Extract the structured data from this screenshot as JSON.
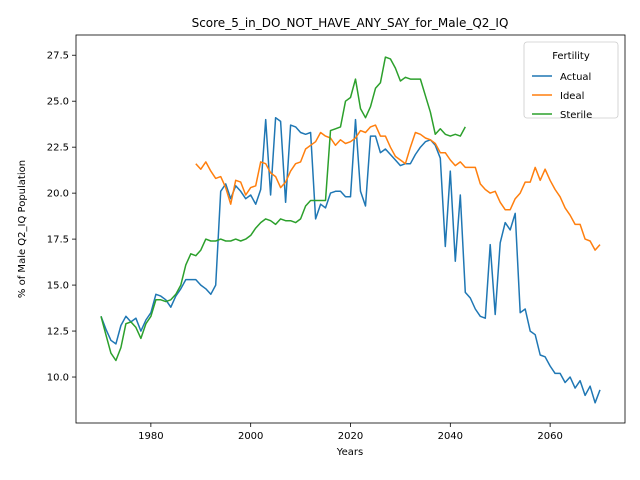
{
  "chart_data": {
    "type": "line",
    "title": "Score_5_in_DO_NOT_HAVE_ANY_SAY_for_Male_Q2_IQ",
    "xlabel": "Years",
    "ylabel": "% of Male Q2_IQ Population",
    "xlim": [
      1965,
      2075
    ],
    "ylim": [
      7.5,
      28.6
    ],
    "xticks": [
      1980,
      2000,
      2020,
      2040,
      2060
    ],
    "yticks": [
      10.0,
      12.5,
      15.0,
      17.5,
      20.0,
      22.5,
      25.0,
      27.5
    ],
    "xtick_labels": [
      "1980",
      "2000",
      "2020",
      "2040",
      "2060"
    ],
    "ytick_labels": [
      "10.0",
      "12.5",
      "15.0",
      "17.5",
      "20.0",
      "22.5",
      "25.0",
      "27.5"
    ],
    "grid": false,
    "legend": {
      "title": "Fertility",
      "position": "top-right"
    },
    "series": [
      {
        "name": "Actual",
        "color": "#1f77b4",
        "x": [
          1970,
          1971,
          1972,
          1973,
          1974,
          1975,
          1976,
          1977,
          1978,
          1979,
          1980,
          1981,
          1982,
          1983,
          1984,
          1985,
          1986,
          1987,
          1988,
          1989,
          1990,
          1991,
          1992,
          1993,
          1994,
          1995,
          1996,
          1997,
          1998,
          1999,
          2000,
          2001,
          2002,
          2003,
          2004,
          2005,
          2006,
          2007,
          2008,
          2009,
          2010,
          2011,
          2012,
          2013,
          2014,
          2015,
          2016,
          2017,
          2018,
          2019,
          2020,
          2021,
          2022,
          2023,
          2024,
          2025,
          2026,
          2027,
          2028,
          2029,
          2030,
          2031,
          2032,
          2033,
          2034,
          2035,
          2036,
          2037,
          2038,
          2039,
          2040,
          2041,
          2042,
          2043,
          2044,
          2045,
          2046,
          2047,
          2048,
          2049,
          2050,
          2051,
          2052,
          2053,
          2054,
          2055,
          2056,
          2057,
          2058,
          2059,
          2060,
          2061,
          2062,
          2063,
          2064,
          2065,
          2066,
          2067,
          2068,
          2069,
          2070
        ],
        "y": [
          13.3,
          12.6,
          12.0,
          11.8,
          12.8,
          13.3,
          13.0,
          13.2,
          12.5,
          13.1,
          13.5,
          14.5,
          14.4,
          14.2,
          13.8,
          14.4,
          14.8,
          15.3,
          15.3,
          15.3,
          15.0,
          14.8,
          14.5,
          15.0,
          20.1,
          20.5,
          19.7,
          20.4,
          20.1,
          19.7,
          19.9,
          19.4,
          20.2,
          24.0,
          19.9,
          24.1,
          23.9,
          19.5,
          23.7,
          23.6,
          23.3,
          23.2,
          23.3,
          18.6,
          19.4,
          19.2,
          20.0,
          20.1,
          20.1,
          19.8,
          19.8,
          24.0,
          20.1,
          19.3,
          23.1,
          23.1,
          22.2,
          22.4,
          22.1,
          21.8,
          21.5,
          21.6,
          21.6,
          22.1,
          22.5,
          22.8,
          22.9,
          22.6,
          21.9,
          17.1,
          21.2,
          16.3,
          19.9,
          14.6,
          14.3,
          13.7,
          13.3,
          13.2,
          17.2,
          13.4,
          17.3,
          18.4,
          18.0,
          18.9,
          13.5,
          13.7,
          12.5,
          12.3,
          11.2,
          11.1,
          10.6,
          10.2,
          10.2,
          9.7,
          10.0,
          9.4,
          9.8,
          9.0,
          9.5,
          8.6,
          9.3
        ]
      },
      {
        "name": "Ideal",
        "color": "#ff7f0e",
        "x": [
          1989,
          1990,
          1991,
          1992,
          1993,
          1994,
          1995,
          1996,
          1997,
          1998,
          1999,
          2000,
          2001,
          2002,
          2003,
          2004,
          2005,
          2006,
          2007,
          2008,
          2009,
          2010,
          2011,
          2012,
          2013,
          2014,
          2015,
          2016,
          2017,
          2018,
          2019,
          2020,
          2021,
          2022,
          2023,
          2024,
          2025,
          2026,
          2027,
          2028,
          2029,
          2030,
          2031,
          2032,
          2033,
          2034,
          2035,
          2036,
          2037,
          2038,
          2039,
          2040,
          2041,
          2042,
          2043,
          2044,
          2045,
          2046,
          2047,
          2048,
          2049,
          2050,
          2051,
          2052,
          2053,
          2054,
          2055,
          2056,
          2057,
          2058,
          2059,
          2060,
          2061,
          2062,
          2063,
          2064,
          2065,
          2066,
          2067,
          2068,
          2069,
          2070
        ],
        "y": [
          21.6,
          21.3,
          21.7,
          21.2,
          20.8,
          20.9,
          20.3,
          19.4,
          20.7,
          20.6,
          19.9,
          20.3,
          20.4,
          21.7,
          21.6,
          21.1,
          20.9,
          20.3,
          20.6,
          21.2,
          21.6,
          21.7,
          22.4,
          22.6,
          22.8,
          23.3,
          23.1,
          23.0,
          22.6,
          22.9,
          22.7,
          22.8,
          23.0,
          23.4,
          23.3,
          23.6,
          23.7,
          23.1,
          23.1,
          22.5,
          22.0,
          21.8,
          21.6,
          22.5,
          23.3,
          23.2,
          23.0,
          22.9,
          22.7,
          22.2,
          22.2,
          21.8,
          21.5,
          21.7,
          21.4,
          21.4,
          21.4,
          20.5,
          20.2,
          20.0,
          20.1,
          19.5,
          19.1,
          19.1,
          19.7,
          20.0,
          20.6,
          20.6,
          21.4,
          20.7,
          21.3,
          20.7,
          20.2,
          19.8,
          19.2,
          18.8,
          18.3,
          18.3,
          17.5,
          17.4,
          16.9,
          17.2
        ]
      },
      {
        "name": "Sterile",
        "color": "#2ca02c",
        "x": [
          1970,
          1971,
          1972,
          1973,
          1974,
          1975,
          1976,
          1977,
          1978,
          1979,
          1980,
          1981,
          1982,
          1983,
          1984,
          1985,
          1986,
          1987,
          1988,
          1989,
          1990,
          1991,
          1992,
          1993,
          1994,
          1995,
          1996,
          1997,
          1998,
          1999,
          2000,
          2001,
          2002,
          2003,
          2004,
          2005,
          2006,
          2007,
          2008,
          2009,
          2010,
          2011,
          2012,
          2013,
          2014,
          2015,
          2016,
          2017,
          2018,
          2019,
          2020,
          2021,
          2022,
          2023,
          2024,
          2025,
          2026,
          2027,
          2028,
          2029,
          2030,
          2031,
          2032,
          2033,
          2034,
          2035,
          2036,
          2037,
          2038,
          2039,
          2040,
          2041,
          2042,
          2043
        ],
        "y": [
          13.3,
          12.3,
          11.3,
          10.9,
          11.6,
          12.9,
          13.0,
          12.7,
          12.1,
          12.9,
          13.3,
          14.2,
          14.2,
          14.1,
          14.2,
          14.5,
          15.0,
          16.1,
          16.7,
          16.6,
          16.9,
          17.5,
          17.4,
          17.4,
          17.5,
          17.4,
          17.4,
          17.5,
          17.4,
          17.5,
          17.7,
          18.1,
          18.4,
          18.6,
          18.5,
          18.3,
          18.6,
          18.5,
          18.5,
          18.4,
          18.6,
          19.3,
          19.6,
          19.6,
          19.6,
          19.6,
          23.4,
          23.5,
          23.6,
          25.0,
          25.2,
          26.2,
          24.6,
          24.1,
          24.7,
          25.7,
          26.0,
          27.4,
          27.3,
          26.8,
          26.1,
          26.3,
          26.2,
          26.2,
          26.2,
          25.3,
          24.4,
          23.2,
          23.5,
          23.2,
          23.1,
          23.2,
          23.1,
          23.6
        ]
      }
    ]
  }
}
